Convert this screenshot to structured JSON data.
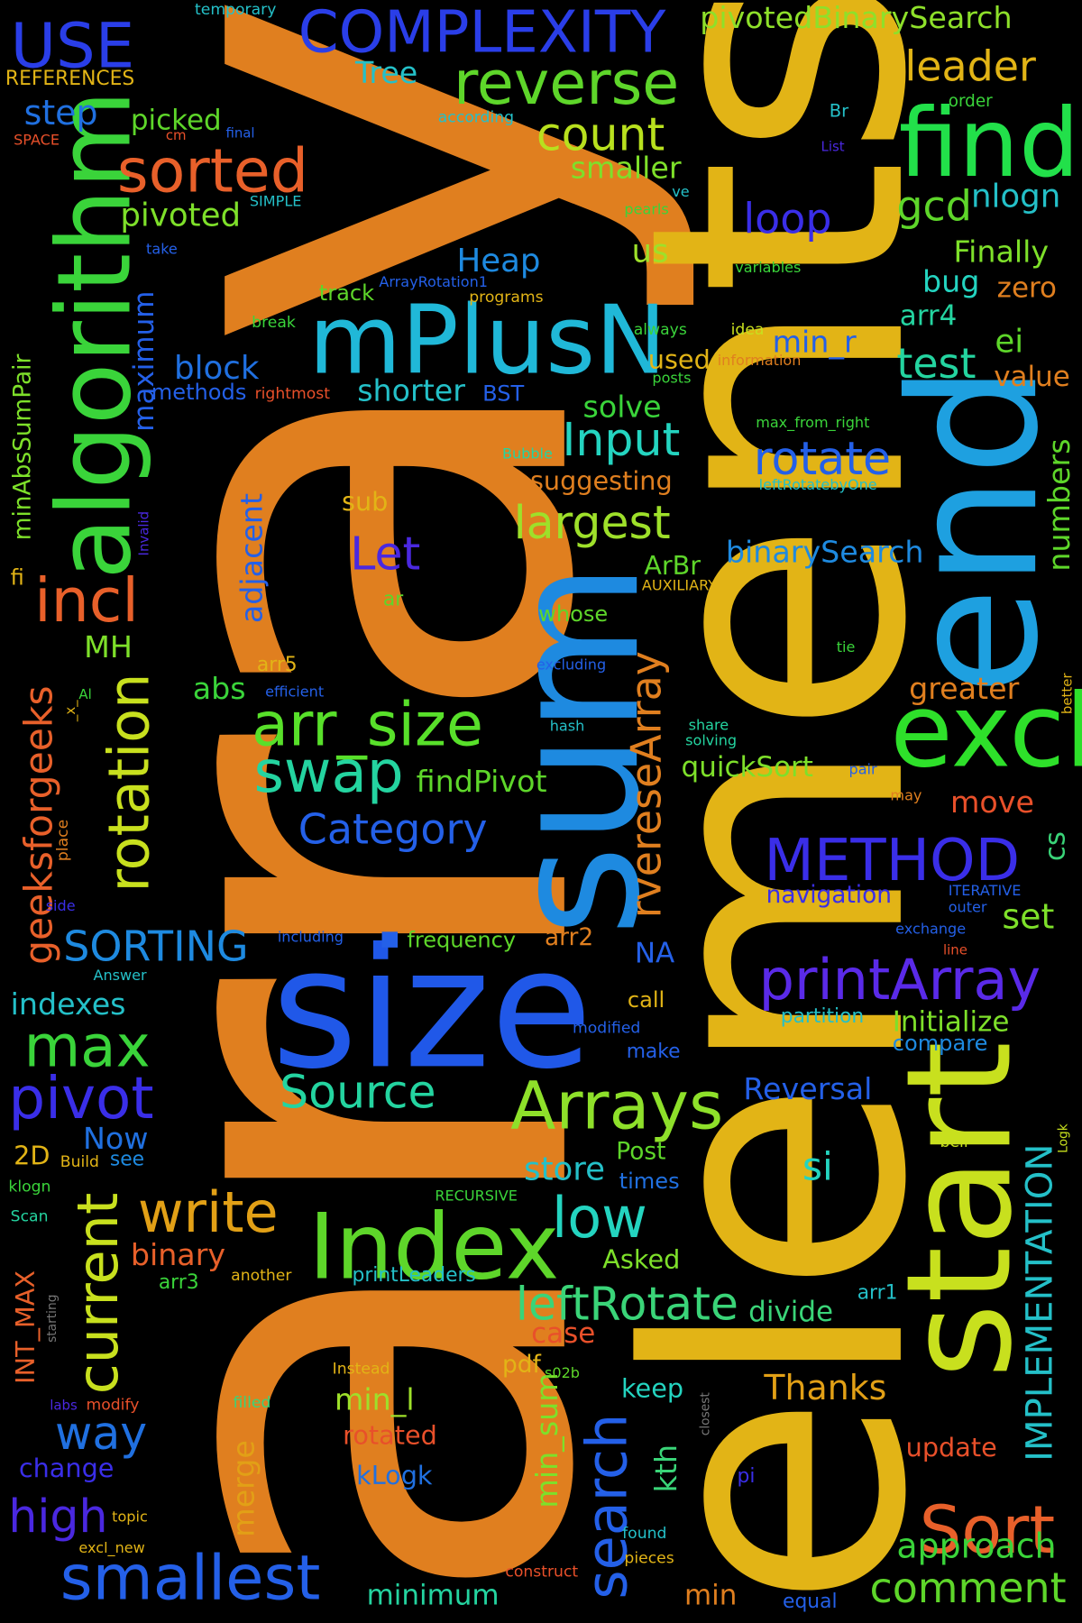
{
  "words": [
    {
      "text": "array",
      "color": "#e07f1f"
    },
    {
      "text": "elements",
      "color": "#e2b416"
    },
    {
      "text": "sum",
      "color": "#1e8ae0"
    },
    {
      "text": "end",
      "color": "#1ea0e0"
    },
    {
      "text": "size",
      "color": "#2058e8"
    },
    {
      "text": "start",
      "color": "#c8e01e"
    },
    {
      "text": "mPlusN",
      "color": "#20b8d8"
    },
    {
      "text": "Index",
      "color": "#5ed62a"
    },
    {
      "text": "algorithm",
      "color": "#3ad43a"
    },
    {
      "text": "excl",
      "color": "#2ee02a"
    },
    {
      "text": "find",
      "color": "#22e04a"
    },
    {
      "text": "Arrays",
      "color": "#8ee02a"
    },
    {
      "text": "Sort",
      "color": "#e8602a"
    },
    {
      "text": "smallest",
      "color": "#2460e8"
    },
    {
      "text": "COMPLEXITY",
      "color": "#2a3ee8"
    },
    {
      "text": "USE",
      "color": "#2a3ee8"
    },
    {
      "text": "reverse",
      "color": "#5ed62a"
    },
    {
      "text": "sorted",
      "color": "#e8602a"
    },
    {
      "text": "incl",
      "color": "#e8602a"
    },
    {
      "text": "arr_size",
      "color": "#58e02a"
    },
    {
      "text": "swap",
      "color": "#24d4a0"
    },
    {
      "text": "printArray",
      "color": "#5a2ae8"
    },
    {
      "text": "METHOD",
      "color": "#3a2ee8"
    },
    {
      "text": "pivot",
      "color": "#3a2ee8"
    },
    {
      "text": "max",
      "color": "#3ad43a"
    },
    {
      "text": "write",
      "color": "#e2a016"
    },
    {
      "text": "low",
      "color": "#24d4c0"
    },
    {
      "text": "leftRotate",
      "color": "#3ad478"
    },
    {
      "text": "search",
      "color": "#2460e8"
    },
    {
      "text": "rotation",
      "color": "#c8e01e"
    },
    {
      "text": "current",
      "color": "#c8e01e"
    },
    {
      "text": "Source",
      "color": "#24d4a0"
    },
    {
      "text": "Category",
      "color": "#2460e8"
    },
    {
      "text": "largest",
      "color": "#9ee02a"
    },
    {
      "text": "count",
      "color": "#b8e01e"
    },
    {
      "text": "rotate",
      "color": "#2460e8"
    },
    {
      "text": "Input",
      "color": "#24d4c0"
    },
    {
      "text": "comment",
      "color": "#5ed62a"
    },
    {
      "text": "approach",
      "color": "#3ad43a"
    },
    {
      "text": "Thanks",
      "color": "#e2a016"
    },
    {
      "text": "way",
      "color": "#2070e0"
    },
    {
      "text": "high",
      "color": "#4a28e0"
    },
    {
      "text": "SORTING",
      "color": "#1e8ae0"
    },
    {
      "text": "Let",
      "color": "#4a28e0"
    },
    {
      "text": "rvereseArray",
      "color": "#e07f1f"
    },
    {
      "text": "leader",
      "color": "#e2b416"
    },
    {
      "text": "gcd",
      "color": "#5ed62a"
    },
    {
      "text": "loop",
      "color": "#3a2ee8"
    },
    {
      "text": "test",
      "color": "#24d4a0"
    },
    {
      "text": "geeksforgeeks",
      "color": "#e8602a"
    },
    {
      "text": "minAbsSumPair",
      "color": "#7ee02a"
    },
    {
      "text": "IMPLEMENTATION",
      "color": "#24c0c8"
    },
    {
      "text": "INT_MAX",
      "color": "#e8602a"
    },
    {
      "text": "maximum",
      "color": "#2460e8"
    },
    {
      "text": "adjacent",
      "color": "#2460e8"
    },
    {
      "text": "min_sum",
      "color": "#7ee02a"
    },
    {
      "text": "merge",
      "color": "#e2a016"
    },
    {
      "text": "kth",
      "color": "#3ad478"
    },
    {
      "text": "numbers",
      "color": "#5ed62a"
    },
    {
      "text": "cs",
      "color": "#3ad478"
    },
    {
      "text": "binarySearch",
      "color": "#1e8ae0"
    },
    {
      "text": "pivotedBinarySearch",
      "color": "#8ee02a"
    },
    {
      "text": "Tree",
      "color": "#24c0c8"
    },
    {
      "text": "step",
      "color": "#2070e0"
    },
    {
      "text": "picked",
      "color": "#5ed62a"
    },
    {
      "text": "pivoted",
      "color": "#7ee02a"
    },
    {
      "text": "smaller",
      "color": "#7ee02a"
    },
    {
      "text": "nlogn",
      "color": "#24c0c8"
    },
    {
      "text": "Finally",
      "color": "#7ee02a"
    },
    {
      "text": "Heap",
      "color": "#1e8ae0"
    },
    {
      "text": "us",
      "color": "#9ee02a"
    },
    {
      "text": "bug",
      "color": "#24d4c0"
    },
    {
      "text": "zero",
      "color": "#e07f1f"
    },
    {
      "text": "arr4",
      "color": "#24d4a0"
    },
    {
      "text": "ei",
      "color": "#5ed62a"
    },
    {
      "text": "min_r",
      "color": "#2460e8"
    },
    {
      "text": "value",
      "color": "#e07f1f"
    },
    {
      "text": "used",
      "color": "#e2b416"
    },
    {
      "text": "block",
      "color": "#2070e0"
    },
    {
      "text": "shorter",
      "color": "#24c0c8"
    },
    {
      "text": "BST",
      "color": "#2460e8"
    },
    {
      "text": "methods",
      "color": "#2460e8"
    },
    {
      "text": "rightmost",
      "color": "#e8502a"
    },
    {
      "text": "solve",
      "color": "#3ad43a"
    },
    {
      "text": "suggesting",
      "color": "#e07f1f"
    },
    {
      "text": "sub",
      "color": "#e2b416"
    },
    {
      "text": "ArBr",
      "color": "#5ed62a"
    },
    {
      "text": "whose",
      "color": "#5ed62a"
    },
    {
      "text": "AUXILIARY",
      "color": "#e2b416"
    },
    {
      "text": "ar",
      "color": "#5ed62a"
    },
    {
      "text": "fi",
      "color": "#e2b416"
    },
    {
      "text": "MH",
      "color": "#7ee02a"
    },
    {
      "text": "abs",
      "color": "#3ad43a"
    },
    {
      "text": "greater",
      "color": "#e07f1f"
    },
    {
      "text": "findPivot",
      "color": "#5ed62a"
    },
    {
      "text": "quickSort",
      "color": "#7ee02a"
    },
    {
      "text": "move",
      "color": "#e8502a"
    },
    {
      "text": "navigation",
      "color": "#3a2ee8"
    },
    {
      "text": "set",
      "color": "#7ee02a"
    },
    {
      "text": "frequency",
      "color": "#5ed62a"
    },
    {
      "text": "arr2",
      "color": "#e07f1f"
    },
    {
      "text": "NA",
      "color": "#2460e8"
    },
    {
      "text": "call",
      "color": "#e2b416"
    },
    {
      "text": "indexes",
      "color": "#24c0c8"
    },
    {
      "text": "Initialize",
      "color": "#7ee02a"
    },
    {
      "text": "partition",
      "color": "#24c0c8"
    },
    {
      "text": "compare",
      "color": "#1e8ae0"
    },
    {
      "text": "make",
      "color": "#2460e8"
    },
    {
      "text": "modified",
      "color": "#2460e8"
    },
    {
      "text": "Reversal",
      "color": "#2460e8"
    },
    {
      "text": "Now",
      "color": "#2070e0"
    },
    {
      "text": "2D",
      "color": "#e2b416"
    },
    {
      "text": "Build",
      "color": "#e2b416"
    },
    {
      "text": "see",
      "color": "#1e8ae0"
    },
    {
      "text": "store",
      "color": "#24c0c8"
    },
    {
      "text": "Post",
      "color": "#5ed62a"
    },
    {
      "text": "times",
      "color": "#2070e0"
    },
    {
      "text": "si",
      "color": "#24d4c0"
    },
    {
      "text": "bell",
      "color": "#c8e01e"
    },
    {
      "text": "Logk",
      "color": "#c8e01e"
    },
    {
      "text": "klogn",
      "color": "#3ad43a"
    },
    {
      "text": "RECURSIVE",
      "color": "#3ad43a"
    },
    {
      "text": "Scan",
      "color": "#24d4a0"
    },
    {
      "text": "binary",
      "color": "#e8602a"
    },
    {
      "text": "Asked",
      "color": "#7ee02a"
    },
    {
      "text": "printLeaders",
      "color": "#24c0c8"
    },
    {
      "text": "arr3",
      "color": "#3ad43a"
    },
    {
      "text": "another",
      "color": "#e2b416"
    },
    {
      "text": "starting",
      "color": "#777777"
    },
    {
      "text": "divide",
      "color": "#3ad478"
    },
    {
      "text": "arr1",
      "color": "#24c0c8"
    },
    {
      "text": "case",
      "color": "#e8502a"
    },
    {
      "text": "pdf",
      "color": "#e2b416"
    },
    {
      "text": "s02b",
      "color": "#5ed62a"
    },
    {
      "text": "Instead",
      "color": "#e2b416"
    },
    {
      "text": "keep",
      "color": "#24d4c0"
    },
    {
      "text": "closest",
      "color": "#777777"
    },
    {
      "text": "min_l",
      "color": "#9ee02a"
    },
    {
      "text": "rotated",
      "color": "#e8502a"
    },
    {
      "text": "filled",
      "color": "#3ad478"
    },
    {
      "text": "labs",
      "color": "#4a28e0"
    },
    {
      "text": "modify",
      "color": "#e8502a"
    },
    {
      "text": "update",
      "color": "#e8502a"
    },
    {
      "text": "change",
      "color": "#3a2ee8"
    },
    {
      "text": "kLogk",
      "color": "#2070e0"
    },
    {
      "text": "pi",
      "color": "#3a2ee8"
    },
    {
      "text": "topic",
      "color": "#e2b416"
    },
    {
      "text": "excl_new",
      "color": "#e2b416"
    },
    {
      "text": "found",
      "color": "#24c0c8"
    },
    {
      "text": "pieces",
      "color": "#e2b416"
    },
    {
      "text": "construct",
      "color": "#e8502a"
    },
    {
      "text": "minimum",
      "color": "#24d4a0"
    },
    {
      "text": "min",
      "color": "#e07f1f"
    },
    {
      "text": "equal",
      "color": "#2460e8"
    },
    {
      "text": "temporary",
      "color": "#24c0c8"
    },
    {
      "text": "REFERENCES",
      "color": "#e2b416"
    },
    {
      "text": "SPACE",
      "color": "#e8502a"
    },
    {
      "text": "cm",
      "color": "#e8502a"
    },
    {
      "text": "final",
      "color": "#2460e8"
    },
    {
      "text": "according",
      "color": "#24c0c8"
    },
    {
      "text": "Br",
      "color": "#24c0c8"
    },
    {
      "text": "List",
      "color": "#4a28e0"
    },
    {
      "text": "order",
      "color": "#3ad43a"
    },
    {
      "text": "SIMPLE",
      "color": "#24c0c8"
    },
    {
      "text": "ve",
      "color": "#24c0c8"
    },
    {
      "text": "pearls",
      "color": "#3ad43a"
    },
    {
      "text": "take",
      "color": "#2460e8"
    },
    {
      "text": "variables",
      "color": "#3ad43a"
    },
    {
      "text": "ArrayRotation1",
      "color": "#2460e8"
    },
    {
      "text": "track",
      "color": "#5ed62a"
    },
    {
      "text": "programs",
      "color": "#e2b416"
    },
    {
      "text": "break",
      "color": "#3ad43a"
    },
    {
      "text": "always",
      "color": "#3ad43a"
    },
    {
      "text": "idea",
      "color": "#c8e01e"
    },
    {
      "text": "information",
      "color": "#e07f1f"
    },
    {
      "text": "posts",
      "color": "#3ad43a"
    },
    {
      "text": "max_from_right",
      "color": "#3ad43a"
    },
    {
      "text": "Bubble",
      "color": "#24d4a0"
    },
    {
      "text": "leftRotatebyOne",
      "color": "#24c0c8"
    },
    {
      "text": "Invalid",
      "color": "#4a28e0"
    },
    {
      "text": "excluding",
      "color": "#2460e8"
    },
    {
      "text": "tie",
      "color": "#3ad43a"
    },
    {
      "text": "better",
      "color": "#e2b416"
    },
    {
      "text": "arr5",
      "color": "#e2b416"
    },
    {
      "text": "efficient",
      "color": "#2460e8"
    },
    {
      "text": "Al",
      "color": "#3ad43a"
    },
    {
      "text": "_x_",
      "color": "#e2b416"
    },
    {
      "text": "hash",
      "color": "#24c0c8"
    },
    {
      "text": "share",
      "color": "#24d4a0"
    },
    {
      "text": "solving",
      "color": "#24d4a0"
    },
    {
      "text": "pair",
      "color": "#2460e8"
    },
    {
      "text": "may",
      "color": "#e07f1f"
    },
    {
      "text": "place",
      "color": "#e07f1f"
    },
    {
      "text": "ITERATIVE",
      "color": "#2460e8"
    },
    {
      "text": "outer",
      "color": "#2460e8"
    },
    {
      "text": "side",
      "color": "#3a2ee8"
    },
    {
      "text": "including",
      "color": "#2460e8"
    },
    {
      "text": "exchange",
      "color": "#2460e8"
    },
    {
      "text": "line",
      "color": "#e8502a"
    },
    {
      "text": "Answer",
      "color": "#24c0c8"
    },
    {
      "text": "■",
      "color": "#2460e8"
    }
  ]
}
